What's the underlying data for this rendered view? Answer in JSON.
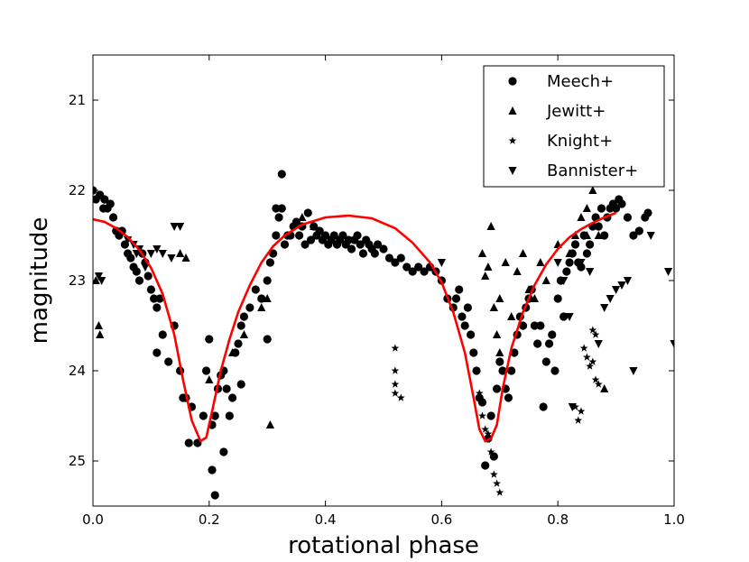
{
  "chart_data": {
    "type": "scatter",
    "title": "",
    "xlabel": "rotational phase",
    "ylabel": "magnitude",
    "xlim": [
      0.0,
      1.0
    ],
    "ylim": [
      25.5,
      20.5
    ],
    "y_inverted": true,
    "x_ticks": [
      0.0,
      0.2,
      0.4,
      0.6,
      0.8,
      1.0
    ],
    "x_tick_labels": [
      "0.0",
      "0.2",
      "0.4",
      "0.6",
      "0.8",
      "1.0"
    ],
    "y_ticks": [
      21,
      22,
      23,
      24,
      25
    ],
    "y_tick_labels": [
      "21",
      "22",
      "23",
      "24",
      "25"
    ],
    "grid": false,
    "legend_position": "top-right",
    "series": [
      {
        "name": "Meech+",
        "marker": "circle",
        "points": [
          [
            0.0,
            22.0
          ],
          [
            0.005,
            22.1
          ],
          [
            0.012,
            22.05
          ],
          [
            0.018,
            22.2
          ],
          [
            0.02,
            22.1
          ],
          [
            0.025,
            22.2
          ],
          [
            0.03,
            22.15
          ],
          [
            0.035,
            22.3
          ],
          [
            0.04,
            22.45
          ],
          [
            0.045,
            22.5
          ],
          [
            0.05,
            22.45
          ],
          [
            0.055,
            22.6
          ],
          [
            0.06,
            22.7
          ],
          [
            0.065,
            22.75
          ],
          [
            0.07,
            22.85
          ],
          [
            0.075,
            22.9
          ],
          [
            0.08,
            23.0
          ],
          [
            0.085,
            22.7
          ],
          [
            0.09,
            22.8
          ],
          [
            0.095,
            22.95
          ],
          [
            0.1,
            23.1
          ],
          [
            0.105,
            23.2
          ],
          [
            0.11,
            23.3
          ],
          [
            0.115,
            23.2
          ],
          [
            0.12,
            23.6
          ],
          [
            0.11,
            23.8
          ],
          [
            0.13,
            23.9
          ],
          [
            0.14,
            23.5
          ],
          [
            0.15,
            24.0
          ],
          [
            0.155,
            24.3
          ],
          [
            0.16,
            24.3
          ],
          [
            0.165,
            24.8
          ],
          [
            0.17,
            24.4
          ],
          [
            0.18,
            24.8
          ],
          [
            0.19,
            24.5
          ],
          [
            0.195,
            24.0
          ],
          [
            0.2,
            23.65
          ],
          [
            0.205,
            24.6
          ],
          [
            0.21,
            24.5
          ],
          [
            0.215,
            24.2
          ],
          [
            0.22,
            24.05
          ],
          [
            0.225,
            24.0
          ],
          [
            0.23,
            24.2
          ],
          [
            0.235,
            24.5
          ],
          [
            0.24,
            24.3
          ],
          [
            0.245,
            23.8
          ],
          [
            0.25,
            23.7
          ],
          [
            0.255,
            23.5
          ],
          [
            0.26,
            23.4
          ],
          [
            0.27,
            23.3
          ],
          [
            0.28,
            23.1
          ],
          [
            0.29,
            23.2
          ],
          [
            0.3,
            23.0
          ],
          [
            0.305,
            22.8
          ],
          [
            0.31,
            22.7
          ],
          [
            0.315,
            22.5
          ],
          [
            0.32,
            22.3
          ],
          [
            0.325,
            22.2
          ],
          [
            0.33,
            22.6
          ],
          [
            0.335,
            22.5
          ],
          [
            0.34,
            22.5
          ],
          [
            0.345,
            22.4
          ],
          [
            0.35,
            22.35
          ],
          [
            0.355,
            22.5
          ],
          [
            0.36,
            22.4
          ],
          [
            0.365,
            22.6
          ],
          [
            0.37,
            22.25
          ],
          [
            0.375,
            22.55
          ],
          [
            0.38,
            22.4
          ],
          [
            0.385,
            22.5
          ],
          [
            0.39,
            22.45
          ],
          [
            0.395,
            22.55
          ],
          [
            0.4,
            22.5
          ],
          [
            0.405,
            22.6
          ],
          [
            0.41,
            22.55
          ],
          [
            0.415,
            22.5
          ],
          [
            0.42,
            22.6
          ],
          [
            0.425,
            22.55
          ],
          [
            0.43,
            22.5
          ],
          [
            0.435,
            22.6
          ],
          [
            0.44,
            22.55
          ],
          [
            0.445,
            22.65
          ],
          [
            0.45,
            22.55
          ],
          [
            0.455,
            22.5
          ],
          [
            0.46,
            22.6
          ],
          [
            0.465,
            22.7
          ],
          [
            0.47,
            22.55
          ],
          [
            0.475,
            22.6
          ],
          [
            0.48,
            22.65
          ],
          [
            0.485,
            22.7
          ],
          [
            0.49,
            22.6
          ],
          [
            0.5,
            22.65
          ],
          [
            0.51,
            22.75
          ],
          [
            0.52,
            22.8
          ],
          [
            0.53,
            22.75
          ],
          [
            0.54,
            22.85
          ],
          [
            0.55,
            22.9
          ],
          [
            0.56,
            22.85
          ],
          [
            0.57,
            22.9
          ],
          [
            0.58,
            22.85
          ],
          [
            0.59,
            22.9
          ],
          [
            0.6,
            23.0
          ],
          [
            0.61,
            23.2
          ],
          [
            0.62,
            23.3
          ],
          [
            0.625,
            23.2
          ],
          [
            0.63,
            23.1
          ],
          [
            0.635,
            23.4
          ],
          [
            0.64,
            23.5
          ],
          [
            0.645,
            23.3
          ],
          [
            0.65,
            23.6
          ],
          [
            0.655,
            23.8
          ],
          [
            0.66,
            24.0
          ],
          [
            0.665,
            24.3
          ],
          [
            0.67,
            24.35
          ],
          [
            0.675,
            25.05
          ],
          [
            0.68,
            24.75
          ],
          [
            0.685,
            24.5
          ],
          [
            0.69,
            24.95
          ],
          [
            0.695,
            24.2
          ],
          [
            0.7,
            23.9
          ],
          [
            0.705,
            24.0
          ],
          [
            0.71,
            24.2
          ],
          [
            0.715,
            24.3
          ],
          [
            0.72,
            24.0
          ],
          [
            0.725,
            23.8
          ],
          [
            0.73,
            23.6
          ],
          [
            0.735,
            23.4
          ],
          [
            0.74,
            23.5
          ],
          [
            0.745,
            23.3
          ],
          [
            0.75,
            23.2
          ],
          [
            0.755,
            23.1
          ],
          [
            0.76,
            23.5
          ],
          [
            0.765,
            23.7
          ],
          [
            0.77,
            23.5
          ],
          [
            0.775,
            24.4
          ],
          [
            0.78,
            23.9
          ],
          [
            0.785,
            23.7
          ],
          [
            0.79,
            23.6
          ],
          [
            0.795,
            24.0
          ],
          [
            0.8,
            23.2
          ],
          [
            0.805,
            23.0
          ],
          [
            0.81,
            23.4
          ],
          [
            0.815,
            22.9
          ],
          [
            0.82,
            22.8
          ],
          [
            0.825,
            22.7
          ],
          [
            0.83,
            22.6
          ],
          [
            0.835,
            22.8
          ],
          [
            0.84,
            22.85
          ],
          [
            0.845,
            22.5
          ],
          [
            0.85,
            22.7
          ],
          [
            0.855,
            22.6
          ],
          [
            0.86,
            22.4
          ],
          [
            0.865,
            22.3
          ],
          [
            0.87,
            22.4
          ],
          [
            0.875,
            22.2
          ],
          [
            0.88,
            22.5
          ],
          [
            0.885,
            22.3
          ],
          [
            0.89,
            22.2
          ],
          [
            0.895,
            22.15
          ],
          [
            0.9,
            22.2
          ],
          [
            0.905,
            22.1
          ],
          [
            0.91,
            22.15
          ],
          [
            0.92,
            22.3
          ],
          [
            0.93,
            22.5
          ],
          [
            0.94,
            22.45
          ],
          [
            0.95,
            22.3
          ],
          [
            0.955,
            22.25
          ],
          [
            0.325,
            21.82
          ],
          [
            0.315,
            22.2
          ],
          [
            0.205,
            25.1
          ],
          [
            0.21,
            25.38
          ],
          [
            0.225,
            24.9
          ],
          [
            0.255,
            24.15
          ],
          [
            0.3,
            23.65
          ]
        ]
      },
      {
        "name": "Jewitt+",
        "marker": "triangle-up",
        "points": [
          [
            0.005,
            23.0
          ],
          [
            0.01,
            23.5
          ],
          [
            0.012,
            23.6
          ],
          [
            0.15,
            22.7
          ],
          [
            0.16,
            22.75
          ],
          [
            0.2,
            24.1
          ],
          [
            0.24,
            23.8
          ],
          [
            0.26,
            23.6
          ],
          [
            0.29,
            23.3
          ],
          [
            0.3,
            23.2
          ],
          [
            0.305,
            24.6
          ],
          [
            0.36,
            22.3
          ],
          [
            0.38,
            22.4
          ],
          [
            0.67,
            22.7
          ],
          [
            0.675,
            22.95
          ],
          [
            0.68,
            22.85
          ],
          [
            0.685,
            22.4
          ],
          [
            0.69,
            23.3
          ],
          [
            0.695,
            23.6
          ],
          [
            0.7,
            23.2
          ],
          [
            0.7,
            23.8
          ],
          [
            0.71,
            22.8
          ],
          [
            0.72,
            23.4
          ],
          [
            0.73,
            22.9
          ],
          [
            0.74,
            22.7
          ],
          [
            0.75,
            23.1
          ],
          [
            0.76,
            23.2
          ],
          [
            0.77,
            22.8
          ],
          [
            0.78,
            23.0
          ],
          [
            0.8,
            22.6
          ],
          [
            0.82,
            22.7
          ],
          [
            0.83,
            22.5
          ],
          [
            0.84,
            22.3
          ],
          [
            0.85,
            22.2
          ],
          [
            0.86,
            22.0
          ],
          [
            0.87,
            22.5
          ],
          [
            0.88,
            24.2
          ],
          [
            0.85,
            22.5
          ]
        ]
      },
      {
        "name": "Knight+",
        "marker": "star",
        "points": [
          [
            0.52,
            23.75
          ],
          [
            0.52,
            24.0
          ],
          [
            0.52,
            24.15
          ],
          [
            0.52,
            24.25
          ],
          [
            0.53,
            24.3
          ],
          [
            0.665,
            24.25
          ],
          [
            0.67,
            24.5
          ],
          [
            0.675,
            24.65
          ],
          [
            0.68,
            24.7
          ],
          [
            0.685,
            24.9
          ],
          [
            0.69,
            25.15
          ],
          [
            0.695,
            25.25
          ],
          [
            0.7,
            25.35
          ],
          [
            0.83,
            24.4
          ],
          [
            0.835,
            24.55
          ],
          [
            0.84,
            24.45
          ],
          [
            0.845,
            23.75
          ],
          [
            0.85,
            23.85
          ],
          [
            0.855,
            23.95
          ],
          [
            0.86,
            23.55
          ],
          [
            0.865,
            24.1
          ],
          [
            0.87,
            24.15
          ],
          [
            0.865,
            23.6
          ],
          [
            0.86,
            23.9
          ]
        ]
      },
      {
        "name": "Bannister+",
        "marker": "triangle-down",
        "points": [
          [
            0.01,
            22.95
          ],
          [
            0.015,
            23.0
          ],
          [
            0.06,
            22.55
          ],
          [
            0.07,
            22.6
          ],
          [
            0.075,
            22.7
          ],
          [
            0.08,
            22.65
          ],
          [
            0.09,
            22.85
          ],
          [
            0.1,
            22.7
          ],
          [
            0.11,
            22.65
          ],
          [
            0.12,
            22.7
          ],
          [
            0.135,
            22.75
          ],
          [
            0.14,
            22.4
          ],
          [
            0.15,
            22.4
          ],
          [
            0.6,
            22.8
          ],
          [
            0.8,
            22.8
          ],
          [
            0.81,
            23.0
          ],
          [
            0.82,
            23.4
          ],
          [
            0.825,
            24.4
          ],
          [
            0.84,
            22.8
          ],
          [
            0.855,
            22.9
          ],
          [
            0.87,
            23.7
          ],
          [
            0.88,
            23.3
          ],
          [
            0.89,
            23.2
          ],
          [
            0.9,
            23.1
          ],
          [
            0.91,
            23.05
          ],
          [
            0.92,
            23.0
          ],
          [
            0.93,
            24.0
          ],
          [
            0.96,
            22.5
          ],
          [
            0.99,
            22.9
          ],
          [
            1.0,
            23.7
          ]
        ]
      }
    ],
    "model_curve": {
      "name": "model",
      "color": "#ff0000",
      "points": [
        [
          0.0,
          22.32
        ],
        [
          0.02,
          22.35
        ],
        [
          0.04,
          22.42
        ],
        [
          0.06,
          22.52
        ],
        [
          0.08,
          22.66
        ],
        [
          0.1,
          22.86
        ],
        [
          0.12,
          23.15
        ],
        [
          0.14,
          23.6
        ],
        [
          0.155,
          24.1
        ],
        [
          0.17,
          24.55
        ],
        [
          0.185,
          24.78
        ],
        [
          0.195,
          24.74
        ],
        [
          0.205,
          24.45
        ],
        [
          0.22,
          24.0
        ],
        [
          0.235,
          23.65
        ],
        [
          0.25,
          23.35
        ],
        [
          0.27,
          23.05
        ],
        [
          0.29,
          22.8
        ],
        [
          0.31,
          22.62
        ],
        [
          0.33,
          22.5
        ],
        [
          0.36,
          22.38
        ],
        [
          0.4,
          22.3
        ],
        [
          0.44,
          22.28
        ],
        [
          0.48,
          22.31
        ],
        [
          0.52,
          22.42
        ],
        [
          0.55,
          22.58
        ],
        [
          0.58,
          22.8
        ],
        [
          0.6,
          23.02
        ],
        [
          0.62,
          23.35
        ],
        [
          0.64,
          23.8
        ],
        [
          0.655,
          24.3
        ],
        [
          0.665,
          24.65
        ],
        [
          0.675,
          24.78
        ],
        [
          0.685,
          24.75
        ],
        [
          0.695,
          24.6
        ],
        [
          0.705,
          24.2
        ],
        [
          0.72,
          23.75
        ],
        [
          0.74,
          23.35
        ],
        [
          0.76,
          23.05
        ],
        [
          0.78,
          22.82
        ],
        [
          0.8,
          22.65
        ],
        [
          0.82,
          22.52
        ],
        [
          0.84,
          22.43
        ],
        [
          0.86,
          22.36
        ],
        [
          0.88,
          22.3
        ],
        [
          0.9,
          22.25
        ]
      ]
    }
  }
}
